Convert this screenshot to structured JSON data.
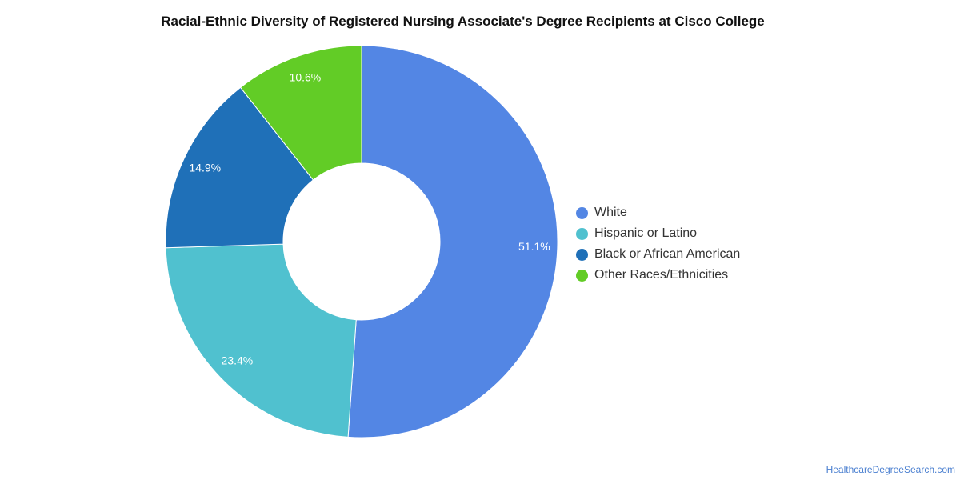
{
  "chart_data": {
    "type": "pie",
    "variant": "donut",
    "title": "Racial-Ethnic Diversity of Registered Nursing Associate's Degree Recipients at Cisco College",
    "categories": [
      "White",
      "Hispanic or Latino",
      "Black or African American",
      "Other Races/Ethnicities"
    ],
    "values": [
      51.1,
      23.4,
      14.9,
      10.6
    ],
    "labels": [
      "51.1%",
      "23.4%",
      "14.9%",
      "10.6%"
    ],
    "colors": [
      "#5386e4",
      "#50c1cf",
      "#1f70b8",
      "#62cc26"
    ],
    "legend_position": "right"
  },
  "footer": {
    "credit": "HealthcareDegreeSearch.com"
  }
}
